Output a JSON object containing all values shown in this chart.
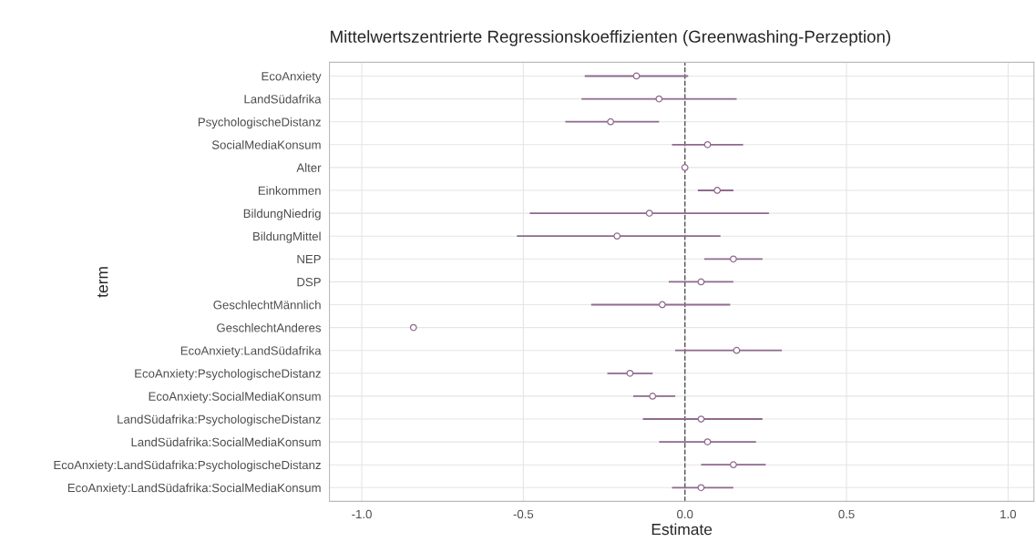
{
  "chart_data": {
    "type": "scatter",
    "orientation": "horizontal",
    "title": "Mittelwertszentrierte Regressionskoeffizienten (Greenwashing-Perzeption)",
    "xlabel": "Estimate",
    "ylabel": "term",
    "categories": [
      "EcoAnxiety",
      "LandSüdafrika",
      "PsychologischeDistanz",
      "SocialMediaKonsum",
      "Alter",
      "Einkommen",
      "BildungNiedrig",
      "BildungMittel",
      "NEP",
      "DSP",
      "GeschlechtMännlich",
      "GeschlechtAnderes",
      "EcoAnxiety:LandSüdafrika",
      "EcoAnxiety:PsychologischeDistanz",
      "EcoAnxiety:SocialMediaKonsum",
      "LandSüdafrika:PsychologischeDistanz",
      "LandSüdafrika:SocialMediaKonsum",
      "EcoAnxiety:LandSüdafrika:PsychologischeDistanz",
      "EcoAnxiety:LandSüdafrika:SocialMediaKonsum"
    ],
    "series": [
      {
        "color": "#8e6a8e",
        "values": [
          -0.15,
          -0.08,
          -0.23,
          0.07,
          0.0,
          0.1,
          -0.11,
          -0.21,
          0.15,
          0.05,
          -0.07,
          -0.84,
          0.16,
          -0.17,
          -0.1,
          0.05,
          0.07,
          0.15,
          0.05
        ],
        "errors": [
          [
            -0.31,
            0.01
          ],
          [
            -0.32,
            0.16
          ],
          [
            -0.37,
            -0.08
          ],
          [
            -0.04,
            0.18
          ],
          null,
          [
            0.04,
            0.15
          ],
          [
            -0.48,
            0.26
          ],
          [
            -0.52,
            0.11
          ],
          [
            0.06,
            0.24
          ],
          [
            -0.05,
            0.15
          ],
          [
            -0.29,
            0.14
          ],
          null,
          [
            -0.03,
            0.3
          ],
          [
            -0.24,
            -0.1
          ],
          [
            -0.16,
            -0.03
          ],
          [
            -0.13,
            0.24
          ],
          [
            -0.08,
            0.22
          ],
          [
            0.05,
            0.25
          ],
          [
            -0.04,
            0.15
          ]
        ]
      }
    ],
    "xlim": [
      -1.1,
      1.08
    ],
    "xticks": [
      {
        "value": -1,
        "label": "-1.0"
      },
      {
        "value": -0.5,
        "label": "-0.5"
      },
      {
        "value": 0,
        "label": "0.0"
      },
      {
        "value": 0.5,
        "label": "0.5"
      },
      {
        "value": 1,
        "label": "1.0"
      }
    ],
    "ref_lines": [
      {
        "axis": "x",
        "value": 0,
        "color": "#555555",
        "line_style": "dashed"
      }
    ],
    "grid": true,
    "marker": "circle",
    "legend": false
  }
}
